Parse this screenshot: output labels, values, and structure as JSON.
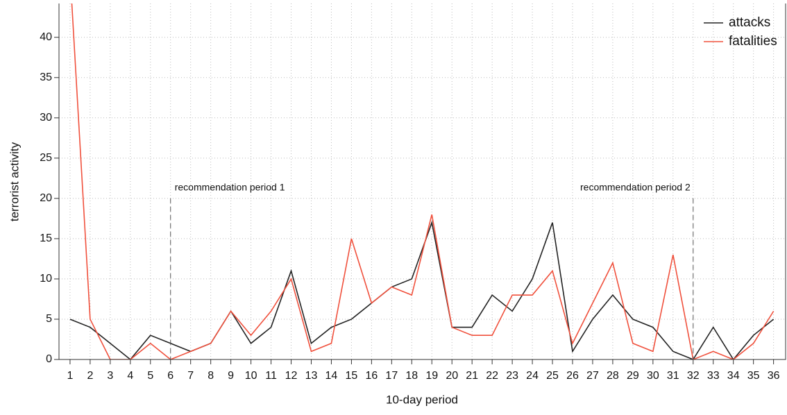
{
  "chart_data": {
    "type": "line",
    "xlabel": "10-day period",
    "ylabel": "terrorist activity",
    "x": [
      1,
      2,
      3,
      4,
      5,
      6,
      7,
      8,
      9,
      10,
      11,
      12,
      13,
      14,
      15,
      16,
      17,
      18,
      19,
      20,
      21,
      22,
      23,
      24,
      25,
      26,
      27,
      28,
      29,
      30,
      31,
      32,
      33,
      34,
      35,
      36
    ],
    "series": [
      {
        "name": "attacks",
        "color": "#222222",
        "values": [
          5,
          4,
          2,
          0,
          3,
          2,
          1,
          2,
          6,
          2,
          4,
          11,
          2,
          4,
          5,
          7,
          9,
          10,
          17,
          4,
          4,
          8,
          6,
          10,
          17,
          1,
          5,
          8,
          5,
          4,
          1,
          0,
          4,
          0,
          3,
          5
        ]
      },
      {
        "name": "fatalities",
        "color": "#f0503c",
        "values": [
          48,
          5,
          0,
          0,
          2,
          0,
          1,
          2,
          6,
          3,
          6,
          10,
          1,
          2,
          15,
          7,
          9,
          8,
          18,
          4,
          3,
          3,
          8,
          8,
          11,
          2,
          7,
          12,
          2,
          1,
          13,
          0,
          1,
          0,
          2,
          6
        ]
      }
    ],
    "periods": [
      {
        "label": "recommendation period 1",
        "x": 6,
        "y": 20
      },
      {
        "label": "recommendation period 2",
        "x": 32,
        "y": 20
      }
    ],
    "xlim": [
      0.45,
      36.6
    ],
    "ylim": [
      0,
      44.2
    ],
    "xticks": [
      1,
      2,
      3,
      4,
      5,
      6,
      7,
      8,
      9,
      10,
      11,
      12,
      13,
      14,
      15,
      16,
      17,
      18,
      19,
      20,
      21,
      22,
      23,
      24,
      25,
      26,
      27,
      28,
      29,
      30,
      31,
      32,
      33,
      34,
      35,
      36
    ],
    "yticks": [
      0,
      5,
      10,
      15,
      20,
      25,
      30,
      35,
      40
    ],
    "grid": true,
    "legend": "upper right"
  }
}
